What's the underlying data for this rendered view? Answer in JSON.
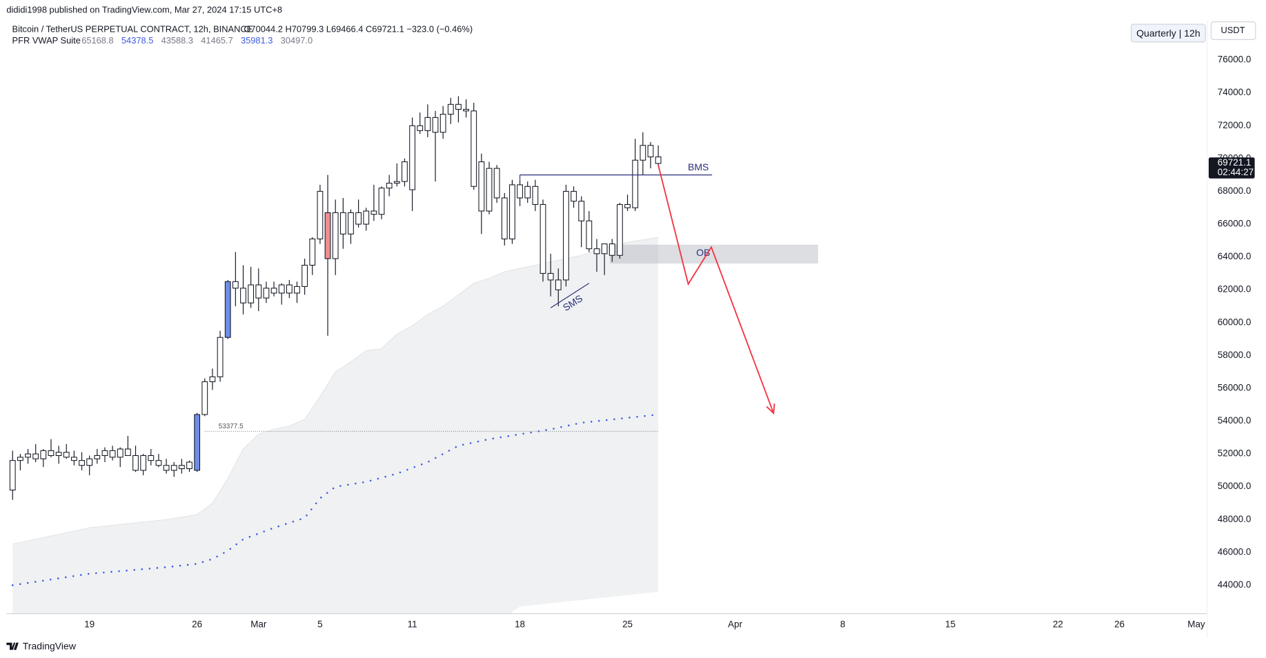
{
  "header": {
    "author": "dididi1998 published on TradingView.com, Mar 27, 2024 17:15 UTC+8",
    "symbol": "Bitcoin / TetherUS PERPETUAL CONTRACT, 12h, BINANCE",
    "ohlc": "O70044.2 H70799.3 L69466.4 C69721.1 −323.0 (−0.46%)",
    "indicator": "PFR VWAP Suite",
    "indicator_values": [
      "65168.8",
      "54378.5",
      "43588.3",
      "41465.7",
      "35981.3",
      "30497.0"
    ],
    "indicator_colors": [
      "#787b86",
      "#3d5be0",
      "#787b86",
      "#787b86",
      "#3d5be0",
      "#787b86"
    ],
    "interval_button": "Quarterly | 12h",
    "currency_button": "USDT"
  },
  "footer": {
    "brand": "TradingView"
  },
  "chart_data": {
    "type": "candlestick",
    "xlim": [
      -0.8,
      155.4
    ],
    "ylim": [
      42270,
      78430
    ],
    "xticks": [
      {
        "value": 10,
        "label": "19"
      },
      {
        "value": 24,
        "label": "26"
      },
      {
        "value": 32,
        "label": "Mar"
      },
      {
        "value": 40,
        "label": "5"
      },
      {
        "value": 52,
        "label": "11"
      },
      {
        "value": 66,
        "label": "18"
      },
      {
        "value": 80,
        "label": "25"
      },
      {
        "value": 94,
        "label": "Apr"
      },
      {
        "value": 108,
        "label": "8"
      },
      {
        "value": 122,
        "label": "15"
      },
      {
        "value": 136,
        "label": "22"
      },
      {
        "value": 144,
        "label": "26"
      },
      {
        "value": 154,
        "label": "May"
      }
    ],
    "yticks": [
      {
        "value": 44000,
        "label": "44000.0"
      },
      {
        "value": 46000,
        "label": "46000.0"
      },
      {
        "value": 48000,
        "label": "48000.0"
      },
      {
        "value": 50000,
        "label": "50000.0"
      },
      {
        "value": 52000,
        "label": "52000.0"
      },
      {
        "value": 54000,
        "label": "54000.0"
      },
      {
        "value": 56000,
        "label": "56000.0"
      },
      {
        "value": 58000,
        "label": "58000.0"
      },
      {
        "value": 60000,
        "label": "60000.0"
      },
      {
        "value": 62000,
        "label": "62000.0"
      },
      {
        "value": 64000,
        "label": "64000.0"
      },
      {
        "value": 66000,
        "label": "66000.0"
      },
      {
        "value": 68000,
        "label": "68000.0"
      },
      {
        "value": 70000,
        "label": "70000.0"
      },
      {
        "value": 72000,
        "label": "72000.0"
      },
      {
        "value": 74000,
        "label": "74000.0"
      },
      {
        "value": 76000,
        "label": "76000.0"
      }
    ],
    "grid": false,
    "candle_color": "#ffffff",
    "candle_outline": "#131722",
    "highlights": [
      {
        "index": 24,
        "color": "#6e8ee6"
      },
      {
        "index": 28,
        "color": "#6e8ee6"
      },
      {
        "index": 41,
        "color": "#ee8f8f"
      }
    ],
    "candles": [
      [
        49800,
        52200,
        49200,
        51600
      ],
      [
        51600,
        52000,
        51000,
        51800
      ],
      [
        51800,
        52300,
        51400,
        52000
      ],
      [
        52000,
        52600,
        51500,
        51700
      ],
      [
        51700,
        52300,
        51200,
        52200
      ],
      [
        52200,
        52900,
        51800,
        51900
      ],
      [
        51900,
        52500,
        51400,
        52100
      ],
      [
        52100,
        52600,
        51700,
        51800
      ],
      [
        51800,
        52200,
        51300,
        51600
      ],
      [
        51600,
        52100,
        51000,
        51300
      ],
      [
        51300,
        51900,
        50700,
        51700
      ],
      [
        51700,
        52300,
        51400,
        51900
      ],
      [
        51900,
        52400,
        51500,
        52200
      ],
      [
        52200,
        52500,
        51600,
        51800
      ],
      [
        51800,
        52400,
        51200,
        52300
      ],
      [
        52300,
        53100,
        51900,
        51900
      ],
      [
        51900,
        52500,
        50900,
        51000
      ],
      [
        51000,
        52000,
        50700,
        51900
      ],
      [
        51900,
        52300,
        51300,
        51600
      ],
      [
        51600,
        52000,
        51200,
        51300
      ],
      [
        51300,
        51700,
        50800,
        51000
      ],
      [
        51000,
        51500,
        50600,
        51300
      ],
      [
        51300,
        51700,
        50800,
        51100
      ],
      [
        51100,
        51600,
        50900,
        51500
      ],
      [
        51000,
        54500,
        50900,
        54400
      ],
      [
        54400,
        56600,
        54300,
        56400
      ],
      [
        56400,
        57200,
        55900,
        56700
      ],
      [
        56700,
        59500,
        56400,
        59100
      ],
      [
        59100,
        62600,
        59000,
        62500
      ],
      [
        62500,
        64300,
        61000,
        62100
      ],
      [
        62100,
        63500,
        60500,
        61200
      ],
      [
        61200,
        63400,
        60900,
        62300
      ],
      [
        62300,
        63300,
        60700,
        61500
      ],
      [
        61500,
        62500,
        61200,
        62100
      ],
      [
        62100,
        62500,
        61600,
        61800
      ],
      [
        61800,
        62400,
        61100,
        62300
      ],
      [
        62300,
        62600,
        61500,
        61800
      ],
      [
        61800,
        62500,
        61200,
        62200
      ],
      [
        62200,
        63900,
        61700,
        63500
      ],
      [
        63500,
        65200,
        62900,
        65100
      ],
      [
        65100,
        68400,
        64800,
        68000
      ],
      [
        66700,
        69000,
        59200,
        63900
      ],
      [
        63900,
        67500,
        62900,
        66700
      ],
      [
        66700,
        67600,
        64500,
        65400
      ],
      [
        65400,
        66900,
        64800,
        66700
      ],
      [
        66700,
        67500,
        65800,
        66000
      ],
      [
        66000,
        67000,
        65600,
        66800
      ],
      [
        66800,
        68400,
        66200,
        66600
      ],
      [
        66600,
        68300,
        66300,
        68200
      ],
      [
        68200,
        69000,
        67700,
        68500
      ],
      [
        68500,
        69700,
        68300,
        68600
      ],
      [
        68600,
        70000,
        68300,
        69800
      ],
      [
        68100,
        72500,
        66800,
        72000
      ],
      [
        72000,
        72800,
        71500,
        71700
      ],
      [
        71700,
        73300,
        71300,
        72500
      ],
      [
        72500,
        72900,
        68600,
        71600
      ],
      [
        71600,
        73200,
        71200,
        72700
      ],
      [
        72700,
        73700,
        72100,
        73300
      ],
      [
        73300,
        73800,
        72200,
        73000
      ],
      [
        73000,
        73600,
        72500,
        72900
      ],
      [
        72900,
        73400,
        68100,
        68300
      ],
      [
        69800,
        70300,
        65400,
        66800
      ],
      [
        66800,
        69800,
        66600,
        69400
      ],
      [
        69400,
        69600,
        67300,
        67600
      ],
      [
        67600,
        67900,
        64700,
        65100
      ],
      [
        65100,
        68700,
        64800,
        68400
      ],
      [
        68400,
        68700,
        67100,
        67600
      ],
      [
        67600,
        68600,
        67300,
        68300
      ],
      [
        68300,
        68700,
        66800,
        67200
      ],
      [
        67200,
        67500,
        62500,
        63000
      ],
      [
        63000,
        64200,
        61600,
        62600
      ],
      [
        62600,
        63300,
        61000,
        62000
      ],
      [
        62600,
        68400,
        62200,
        68000
      ],
      [
        68000,
        68300,
        67000,
        67400
      ],
      [
        67400,
        67700,
        64600,
        66200
      ],
      [
        66200,
        66800,
        64300,
        64500
      ],
      [
        64500,
        65100,
        63100,
        64200
      ],
      [
        64200,
        64800,
        62900,
        64800
      ],
      [
        64800,
        65100,
        63700,
        64100
      ],
      [
        64100,
        67300,
        63900,
        67200
      ],
      [
        67200,
        67800,
        66800,
        67000
      ],
      [
        67000,
        71200,
        66800,
        69900
      ],
      [
        69900,
        71600,
        69000,
        70800
      ],
      [
        70800,
        71000,
        69400,
        70100
      ],
      [
        70100,
        70800,
        69500,
        69700
      ]
    ],
    "band": {
      "color": "#f0f1f2",
      "x": [
        0,
        10,
        20,
        24,
        26,
        28,
        30,
        32,
        34,
        36,
        38,
        40,
        42,
        44,
        46,
        48,
        50,
        52,
        54,
        56,
        58,
        60,
        62,
        64,
        66,
        70,
        74,
        78,
        80,
        84
      ],
      "upper": [
        46500,
        47500,
        48000,
        48300,
        49000,
        50500,
        52300,
        53200,
        53500,
        53700,
        54100,
        55500,
        57000,
        57600,
        58300,
        58400,
        59300,
        59800,
        60500,
        61000,
        61700,
        62400,
        62700,
        63100,
        63300,
        63700,
        64100,
        64700,
        64900,
        65200
      ],
      "lower": [
        null,
        null,
        null,
        null,
        null,
        null,
        null,
        null,
        null,
        null,
        null,
        null,
        null,
        null,
        null,
        null,
        null,
        null,
        null,
        null,
        null,
        null,
        null,
        null,
        42700,
        42900,
        43100,
        43300,
        43400,
        43600
      ]
    },
    "vwap": {
      "color": "#3d5be0",
      "x": [
        0,
        10,
        20,
        24,
        26,
        28,
        30,
        34,
        38,
        40,
        42,
        46,
        50,
        54,
        58,
        62,
        66,
        70,
        74,
        78,
        84
      ],
      "values": [
        44000,
        44700,
        45100,
        45300,
        45600,
        46100,
        46800,
        47500,
        48100,
        49300,
        50000,
        50300,
        50800,
        51500,
        52500,
        52900,
        53200,
        53500,
        53900,
        54100,
        54400
      ]
    },
    "level": {
      "value": 53377.5,
      "x": [
        25,
        84
      ]
    },
    "last_price": {
      "value": 69721.1,
      "countdown": "02:44:27"
    },
    "annotations": {
      "bms": {
        "label": "BMS",
        "price": 69000,
        "x": [
          66,
          91
        ]
      },
      "ob": {
        "label": "OB",
        "top": 64750,
        "bottom": 63600,
        "x": [
          77.7,
          104.8
        ]
      },
      "sms": {
        "label": "SMS",
        "x": [
          70,
          75
        ],
        "y": [
          60900,
          62400
        ]
      },
      "arrow": {
        "color": "#f23645",
        "x": [
          84,
          87.9,
          90.9,
          99
        ],
        "y": [
          69600,
          62350,
          64600,
          54480
        ]
      }
    }
  }
}
